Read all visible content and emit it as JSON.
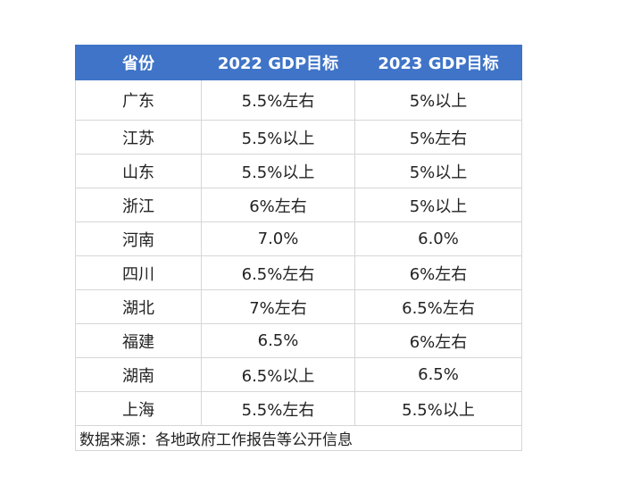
{
  "table": {
    "headers": [
      "省份",
      "2022 GDP目标",
      "2023 GDP目标"
    ],
    "rows": [
      [
        "广东",
        "5.5%左右",
        "5%以上"
      ],
      [
        "江苏",
        "5.5%以上",
        "5%左右"
      ],
      [
        "山东",
        "5.5%以上",
        "5%以上"
      ],
      [
        "浙江",
        "6%左右",
        "5%以上"
      ],
      [
        "河南",
        "7.0%",
        "6.0%"
      ],
      [
        "四川",
        "6.5%左右",
        "6%左右"
      ],
      [
        "湖北",
        "7%左右",
        "6.5%左右"
      ],
      [
        "福建",
        "6.5%",
        "6%左右"
      ],
      [
        "湖南",
        "6.5%以上",
        "6.5%"
      ],
      [
        "上海",
        "5.5%左右",
        "5.5%以上"
      ]
    ],
    "source_note": "数据来源：各地政府工作报告等公开信息"
  },
  "colors": {
    "header_bg": "#3f74c8",
    "header_text": "#ffffff",
    "grid_line": "#d6d6d6"
  }
}
